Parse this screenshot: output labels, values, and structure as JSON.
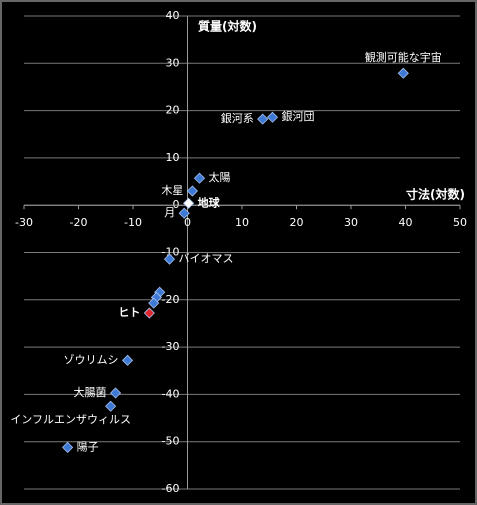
{
  "chart_data": {
    "type": "scatter",
    "x_label": "寸法(対数)",
    "y_label": "質量(対数)",
    "xlim": [
      -30,
      50
    ],
    "xticks": [
      -30,
      -20,
      -10,
      0,
      10,
      20,
      30,
      40,
      50
    ],
    "ylim": [
      -60,
      40
    ],
    "yticks": [
      -60,
      -50,
      -40,
      -30,
      -20,
      -10,
      0,
      10,
      20,
      30,
      40
    ],
    "grid": true,
    "series": [
      {
        "color": "#3f79d6",
        "x": [
          39.6,
          15.6,
          13.8,
          2.2,
          0.9,
          0.2,
          -0.6,
          -3.3,
          -5.1,
          -5.7,
          -6.2,
          -7.0,
          -11.0,
          -13.2,
          -14.1,
          -22.0
        ],
        "values": [
          27.9,
          18.6,
          18.2,
          5.7,
          3.0,
          0.4,
          -1.7,
          -11.4,
          -18.4,
          -19.5,
          -20.7,
          -22.8,
          -32.8,
          -39.7,
          -42.5,
          -51.2
        ],
        "labels": [
          "観測可能な宇宙",
          "銀河団",
          "銀河系",
          "太陽",
          "木星",
          "地球",
          "月",
          "バイオマス",
          null,
          null,
          null,
          "ヒト",
          "ゾウリムシ",
          "大腸菌",
          "インフルエンザウィルス",
          "陽子"
        ],
        "point_colors": [
          null,
          null,
          null,
          null,
          null,
          "#ffffff",
          null,
          null,
          null,
          null,
          null,
          "#e0262b",
          null,
          null,
          null,
          null
        ]
      }
    ]
  }
}
